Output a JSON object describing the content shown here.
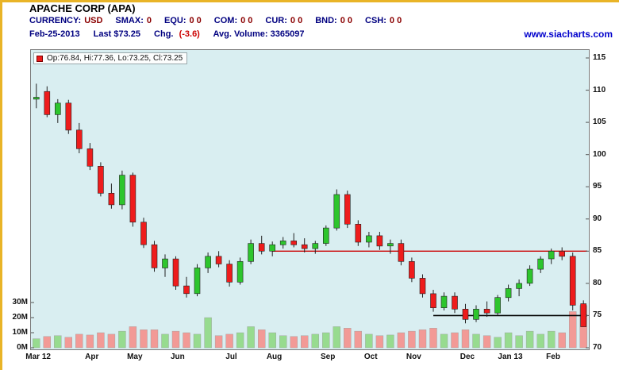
{
  "header": {
    "title": "APACHE CORP (APA)",
    "fields": [
      {
        "label": "CURRENCY:",
        "value": "USD"
      },
      {
        "label": "SMAX:",
        "value": "0"
      },
      {
        "label": "EQU:",
        "value": "0 0"
      },
      {
        "label": "COM:",
        "value": "0 0"
      },
      {
        "label": "CUR:",
        "value": "0 0"
      },
      {
        "label": "BND:",
        "value": "0 0"
      },
      {
        "label": "CSH:",
        "value": "0 0"
      }
    ],
    "date": "Feb-25-2013",
    "last": "Last $73.25",
    "chg_label": "Chg.",
    "chg_value": "(-3.6)",
    "avg_volume": "Avg. Volume: 3365097",
    "website": "www.siacharts.com"
  },
  "legend": {
    "text": "Op:76.84, Hi:77.36, Lo:73.25, Cl:73.25"
  },
  "colors": {
    "candle_up": "#2dc52d",
    "candle_down": "#ee1c1c",
    "volume_up": "#97db8f",
    "volume_down": "#f29a96",
    "wick": "#222222",
    "plot_bg": "#d9eef1",
    "resistance_line": "#cc0000",
    "support_line": "#000000",
    "label_navy": "#000080",
    "value_maroon": "#8b0000",
    "chg_red": "#cc0000",
    "link_blue": "#0000cc",
    "frame_yellow": "#e9b427"
  },
  "chart_data": {
    "type": "candlestick",
    "title": "APACHE CORP (APA)",
    "interval": "weekly",
    "ylim": [
      70,
      115
    ],
    "price_ticks": [
      70,
      75,
      80,
      85,
      90,
      95,
      100,
      105,
      110,
      115
    ],
    "volume_ticks_m": [
      0,
      10,
      20,
      30
    ],
    "months": [
      "Mar 12",
      "Apr",
      "May",
      "Jun",
      "Jul",
      "Aug",
      "Sep",
      "Oct",
      "Nov",
      "Dec",
      "Jan 13",
      "Feb"
    ],
    "candles": [
      {
        "m": 0,
        "o": 108.6,
        "h": 111.0,
        "l": 107.2,
        "c": 108.9,
        "v": 6
      },
      {
        "m": 0,
        "o": 109.8,
        "h": 110.6,
        "l": 105.8,
        "c": 106.2,
        "v": 7.5
      },
      {
        "m": 0,
        "o": 106.2,
        "h": 108.6,
        "l": 104.9,
        "c": 108.0,
        "v": 8
      },
      {
        "m": 0,
        "o": 108.0,
        "h": 108.5,
        "l": 103.2,
        "c": 103.8,
        "v": 7
      },
      {
        "m": 0,
        "o": 103.8,
        "h": 104.9,
        "l": 100.2,
        "c": 100.9,
        "v": 9
      },
      {
        "m": 1,
        "o": 100.9,
        "h": 101.8,
        "l": 97.6,
        "c": 98.2,
        "v": 8.5
      },
      {
        "m": 1,
        "o": 98.2,
        "h": 98.8,
        "l": 93.5,
        "c": 94.0,
        "v": 10
      },
      {
        "m": 1,
        "o": 94.0,
        "h": 95.5,
        "l": 91.6,
        "c": 92.2,
        "v": 9
      },
      {
        "m": 1,
        "o": 92.2,
        "h": 97.5,
        "l": 91.5,
        "c": 96.8,
        "v": 11
      },
      {
        "m": 2,
        "o": 96.8,
        "h": 97.2,
        "l": 88.8,
        "c": 89.5,
        "v": 14
      },
      {
        "m": 2,
        "o": 89.5,
        "h": 90.2,
        "l": 85.5,
        "c": 86.0,
        "v": 12
      },
      {
        "m": 2,
        "o": 86.0,
        "h": 86.6,
        "l": 81.8,
        "c": 82.4,
        "v": 12
      },
      {
        "m": 2,
        "o": 82.4,
        "h": 84.5,
        "l": 81.0,
        "c": 83.8,
        "v": 9
      },
      {
        "m": 3,
        "o": 83.8,
        "h": 84.2,
        "l": 79.0,
        "c": 79.6,
        "v": 11
      },
      {
        "m": 3,
        "o": 79.6,
        "h": 81.0,
        "l": 77.8,
        "c": 78.4,
        "v": 10
      },
      {
        "m": 3,
        "o": 78.4,
        "h": 83.0,
        "l": 78.0,
        "c": 82.4,
        "v": 9
      },
      {
        "m": 3,
        "o": 82.4,
        "h": 84.8,
        "l": 81.6,
        "c": 84.2,
        "v": 20
      },
      {
        "m": 3,
        "o": 84.2,
        "h": 85.0,
        "l": 82.5,
        "c": 83.0,
        "v": 8
      },
      {
        "m": 4,
        "o": 83.0,
        "h": 83.6,
        "l": 79.5,
        "c": 80.2,
        "v": 9
      },
      {
        "m": 4,
        "o": 80.2,
        "h": 84.0,
        "l": 79.8,
        "c": 83.4,
        "v": 10
      },
      {
        "m": 4,
        "o": 83.4,
        "h": 86.8,
        "l": 83.0,
        "c": 86.2,
        "v": 14
      },
      {
        "m": 4,
        "o": 86.2,
        "h": 87.4,
        "l": 84.5,
        "c": 85.0,
        "v": 12
      },
      {
        "m": 5,
        "o": 85.0,
        "h": 86.5,
        "l": 84.2,
        "c": 86.0,
        "v": 10
      },
      {
        "m": 5,
        "o": 86.0,
        "h": 87.2,
        "l": 85.4,
        "c": 86.6,
        "v": 8
      },
      {
        "m": 5,
        "o": 86.6,
        "h": 87.8,
        "l": 85.6,
        "c": 86.0,
        "v": 7.5
      },
      {
        "m": 5,
        "o": 86.0,
        "h": 87.0,
        "l": 84.8,
        "c": 85.4,
        "v": 8
      },
      {
        "m": 5,
        "o": 85.4,
        "h": 86.6,
        "l": 84.6,
        "c": 86.2,
        "v": 9
      },
      {
        "m": 6,
        "o": 86.2,
        "h": 89.0,
        "l": 85.8,
        "c": 88.6,
        "v": 10
      },
      {
        "m": 6,
        "o": 88.6,
        "h": 94.6,
        "l": 88.2,
        "c": 93.8,
        "v": 14
      },
      {
        "m": 6,
        "o": 93.8,
        "h": 94.4,
        "l": 88.6,
        "c": 89.2,
        "v": 13
      },
      {
        "m": 6,
        "o": 89.2,
        "h": 89.8,
        "l": 85.8,
        "c": 86.4,
        "v": 11
      },
      {
        "m": 7,
        "o": 86.4,
        "h": 88.0,
        "l": 85.6,
        "c": 87.4,
        "v": 9
      },
      {
        "m": 7,
        "o": 87.4,
        "h": 88.0,
        "l": 85.2,
        "c": 85.8,
        "v": 8
      },
      {
        "m": 7,
        "o": 85.8,
        "h": 86.8,
        "l": 84.6,
        "c": 86.2,
        "v": 8.5
      },
      {
        "m": 7,
        "o": 86.2,
        "h": 86.8,
        "l": 82.8,
        "c": 83.4,
        "v": 10
      },
      {
        "m": 8,
        "o": 83.4,
        "h": 84.0,
        "l": 80.2,
        "c": 80.8,
        "v": 11
      },
      {
        "m": 8,
        "o": 80.8,
        "h": 81.4,
        "l": 77.8,
        "c": 78.4,
        "v": 12
      },
      {
        "m": 8,
        "o": 78.4,
        "h": 79.0,
        "l": 75.6,
        "c": 76.2,
        "v": 13
      },
      {
        "m": 8,
        "o": 76.2,
        "h": 78.6,
        "l": 75.8,
        "c": 78.0,
        "v": 9
      },
      {
        "m": 8,
        "o": 78.0,
        "h": 78.6,
        "l": 75.4,
        "c": 76.0,
        "v": 10
      },
      {
        "m": 9,
        "o": 76.0,
        "h": 76.8,
        "l": 73.8,
        "c": 74.4,
        "v": 12
      },
      {
        "m": 9,
        "o": 74.4,
        "h": 76.6,
        "l": 74.0,
        "c": 76.0,
        "v": 9
      },
      {
        "m": 9,
        "o": 76.0,
        "h": 77.2,
        "l": 74.8,
        "c": 75.4,
        "v": 8
      },
      {
        "m": 9,
        "o": 75.4,
        "h": 78.2,
        "l": 75.0,
        "c": 77.8,
        "v": 7
      },
      {
        "m": 10,
        "o": 77.8,
        "h": 79.8,
        "l": 77.2,
        "c": 79.2,
        "v": 10
      },
      {
        "m": 10,
        "o": 79.2,
        "h": 80.6,
        "l": 78.0,
        "c": 80.0,
        "v": 8
      },
      {
        "m": 10,
        "o": 80.0,
        "h": 82.8,
        "l": 79.6,
        "c": 82.2,
        "v": 11
      },
      {
        "m": 10,
        "o": 82.2,
        "h": 84.2,
        "l": 81.6,
        "c": 83.8,
        "v": 9
      },
      {
        "m": 11,
        "o": 83.8,
        "h": 85.4,
        "l": 83.0,
        "c": 85.0,
        "v": 11
      },
      {
        "m": 11,
        "o": 85.0,
        "h": 85.6,
        "l": 83.6,
        "c": 84.2,
        "v": 10
      },
      {
        "m": 11,
        "o": 84.2,
        "h": 84.8,
        "l": 75.8,
        "c": 76.6,
        "v": 24
      },
      {
        "m": 11,
        "o": 76.84,
        "h": 77.36,
        "l": 73.25,
        "c": 73.25,
        "v": 28
      }
    ],
    "hlines": [
      {
        "price": 85,
        "from_index": 22,
        "color_key": "resistance_line",
        "width": 1.3
      },
      {
        "price": 75,
        "from_index": 37,
        "color_key": "support_line",
        "width": 1.6
      }
    ]
  }
}
